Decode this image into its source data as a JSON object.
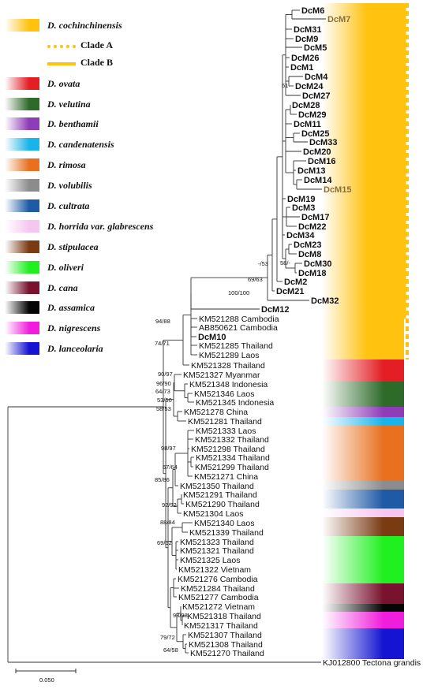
{
  "legend": {
    "species": [
      {
        "label": "D. cochinchinensis",
        "color": "#FFC20E"
      },
      {
        "label": "D. ovata",
        "color": "#E31E24"
      },
      {
        "label": "D. velutina",
        "color": "#2E6B2A"
      },
      {
        "label": "D. benthamii",
        "color": "#8E3CB8"
      },
      {
        "label": "D. candenatensis",
        "color": "#19B4EA"
      },
      {
        "label": "D. rimosa",
        "color": "#E8701E"
      },
      {
        "label": "D. volubilis",
        "color": "#8C8C8C"
      },
      {
        "label": "D. cultrata",
        "color": "#1F5AA6"
      },
      {
        "label": "D. horrida var. glabrescens",
        "color": "#F7C6F0"
      },
      {
        "label": "D. stipulacea",
        "color": "#7A3A12"
      },
      {
        "label": "D. oliveri",
        "color": "#20F020"
      },
      {
        "label": "D. cana",
        "color": "#78122E"
      },
      {
        "label": "D. assamica",
        "color": "#050505"
      },
      {
        "label": "D. nigrescens",
        "color": "#F01EDC"
      },
      {
        "label": "D. lanceolaria",
        "color": "#1414D2"
      }
    ],
    "clade_a": {
      "label": "Clade A",
      "color": "#FFC20E"
    },
    "clade_b": {
      "label": "Clade B",
      "color": "#FFC20E"
    }
  },
  "leaves": [
    {
      "label": "DcM6",
      "bold": true,
      "color": "#111111"
    },
    {
      "label": "DcM7",
      "bold": true,
      "color": "#8B6E3A"
    },
    {
      "label": "DcM31",
      "bold": true,
      "color": "#111111"
    },
    {
      "label": "DcM9",
      "bold": true,
      "color": "#111111"
    },
    {
      "label": "DcM5",
      "bold": true,
      "color": "#111111"
    },
    {
      "label": "DcM26",
      "bold": true,
      "color": "#111111"
    },
    {
      "label": "DcM1",
      "bold": true,
      "color": "#111111"
    },
    {
      "label": "DcM4",
      "bold": true,
      "color": "#111111"
    },
    {
      "label": "DcM24",
      "bold": true,
      "color": "#111111"
    },
    {
      "label": "DcM27",
      "bold": true,
      "color": "#111111"
    },
    {
      "label": "DcM28",
      "bold": true,
      "color": "#111111"
    },
    {
      "label": "DcM29",
      "bold": true,
      "color": "#111111"
    },
    {
      "label": "DcM11",
      "bold": true,
      "color": "#111111"
    },
    {
      "label": "DcM25",
      "bold": true,
      "color": "#111111"
    },
    {
      "label": "DcM33",
      "bold": true,
      "color": "#111111"
    },
    {
      "label": "DcM20",
      "bold": true,
      "color": "#111111"
    },
    {
      "label": "DcM16",
      "bold": true,
      "color": "#111111"
    },
    {
      "label": "DcM13",
      "bold": true,
      "color": "#111111"
    },
    {
      "label": "DcM14",
      "bold": true,
      "color": "#111111"
    },
    {
      "label": "DcM15",
      "bold": true,
      "color": "#8B6E3A"
    },
    {
      "label": "DcM19",
      "bold": true,
      "color": "#111111"
    },
    {
      "label": "DcM3",
      "bold": true,
      "color": "#111111"
    },
    {
      "label": "DcM17",
      "bold": true,
      "color": "#111111"
    },
    {
      "label": "DcM22",
      "bold": true,
      "color": "#111111"
    },
    {
      "label": "DcM34",
      "bold": true,
      "color": "#111111"
    },
    {
      "label": "DcM23",
      "bold": true,
      "color": "#111111"
    },
    {
      "label": "DcM8",
      "bold": true,
      "color": "#111111"
    },
    {
      "label": "DcM30",
      "bold": true,
      "color": "#111111"
    },
    {
      "label": "DcM18",
      "bold": true,
      "color": "#111111"
    },
    {
      "label": "DcM2",
      "bold": true,
      "color": "#111111"
    },
    {
      "label": "DcM21",
      "bold": true,
      "color": "#111111"
    },
    {
      "label": "DcM32",
      "bold": true,
      "color": "#111111"
    },
    {
      "label": "DcM12",
      "bold": true,
      "color": "#111111"
    },
    {
      "label": "KM521288 Cambodia",
      "bold": false,
      "color": "#111111"
    },
    {
      "label": "AB850621 Cambodia",
      "bold": false,
      "color": "#111111"
    },
    {
      "label": "DcM10",
      "bold": true,
      "color": "#111111"
    },
    {
      "label": "KM521285 Thailand",
      "bold": false,
      "color": "#111111"
    },
    {
      "label": "KM521289 Laos",
      "bold": false,
      "color": "#111111"
    },
    {
      "label": "KM521328 Thailand",
      "bold": false,
      "color": "#111111"
    },
    {
      "label": "KM521327 Myanmar",
      "bold": false,
      "color": "#111111"
    },
    {
      "label": "KM521348 Indonesia",
      "bold": false,
      "color": "#111111"
    },
    {
      "label": "KM521346 Laos",
      "bold": false,
      "color": "#111111"
    },
    {
      "label": "KM521345 Indonesia",
      "bold": false,
      "color": "#111111"
    },
    {
      "label": "KM521278 China",
      "bold": false,
      "color": "#111111"
    },
    {
      "label": "KM521281 Thailand",
      "bold": false,
      "color": "#111111"
    },
    {
      "label": "KM521333 Laos",
      "bold": false,
      "color": "#111111"
    },
    {
      "label": "KM521332 Thailand",
      "bold": false,
      "color": "#111111"
    },
    {
      "label": "KM521298 Thailand",
      "bold": false,
      "color": "#111111"
    },
    {
      "label": "KM521334 Thailand",
      "bold": false,
      "color": "#111111"
    },
    {
      "label": "KM521299 Thailand",
      "bold": false,
      "color": "#111111"
    },
    {
      "label": "KM521271 China",
      "bold": false,
      "color": "#111111"
    },
    {
      "label": "KM521350 Thailand",
      "bold": false,
      "color": "#111111"
    },
    {
      "label": "KM521291 Thailand",
      "bold": false,
      "color": "#111111"
    },
    {
      "label": "KM521290 Thailand",
      "bold": false,
      "color": "#111111"
    },
    {
      "label": "KM521304 Laos",
      "bold": false,
      "color": "#111111"
    },
    {
      "label": "KM521340 Laos",
      "bold": false,
      "color": "#111111"
    },
    {
      "label": "KM521339 Thailand",
      "bold": false,
      "color": "#111111"
    },
    {
      "label": "KM521323 Thailand",
      "bold": false,
      "color": "#111111"
    },
    {
      "label": "KM521321 Thailand",
      "bold": false,
      "color": "#111111"
    },
    {
      "label": "KM521325 Laos",
      "bold": false,
      "color": "#111111"
    },
    {
      "label": "KM521322 Vietnam",
      "bold": false,
      "color": "#111111"
    },
    {
      "label": "KM521276 Cambodia",
      "bold": false,
      "color": "#111111"
    },
    {
      "label": "KM521284 Thailand",
      "bold": false,
      "color": "#111111"
    },
    {
      "label": "KM521277 Cambodia",
      "bold": false,
      "color": "#111111"
    },
    {
      "label": "KM521272 Vietnam",
      "bold": false,
      "color": "#111111"
    },
    {
      "label": "KM521318 Thailand",
      "bold": false,
      "color": "#111111"
    },
    {
      "label": "KM521317 Thailand",
      "bold": false,
      "color": "#111111"
    },
    {
      "label": "KM521307 Thailand",
      "bold": false,
      "color": "#111111"
    },
    {
      "label": "KM521308 Thailand",
      "bold": false,
      "color": "#111111"
    },
    {
      "label": "KM521270 Thailand",
      "bold": false,
      "color": "#111111"
    },
    {
      "label": "KJ012800 Tectona grandis",
      "bold": false,
      "color": "#111111"
    }
  ],
  "support_values": [
    "61",
    "-/53",
    "58/-",
    "69/63",
    "100/100",
    "94/88",
    "74/71",
    "90/97",
    "96/90",
    "64/73",
    "53/50",
    "58/53",
    "98/97",
    "67/64",
    "85/86",
    "92/92",
    "88/84",
    "69/62",
    "98/98",
    "79/72",
    "64/58"
  ],
  "scale_bar": {
    "label": "0.050"
  }
}
